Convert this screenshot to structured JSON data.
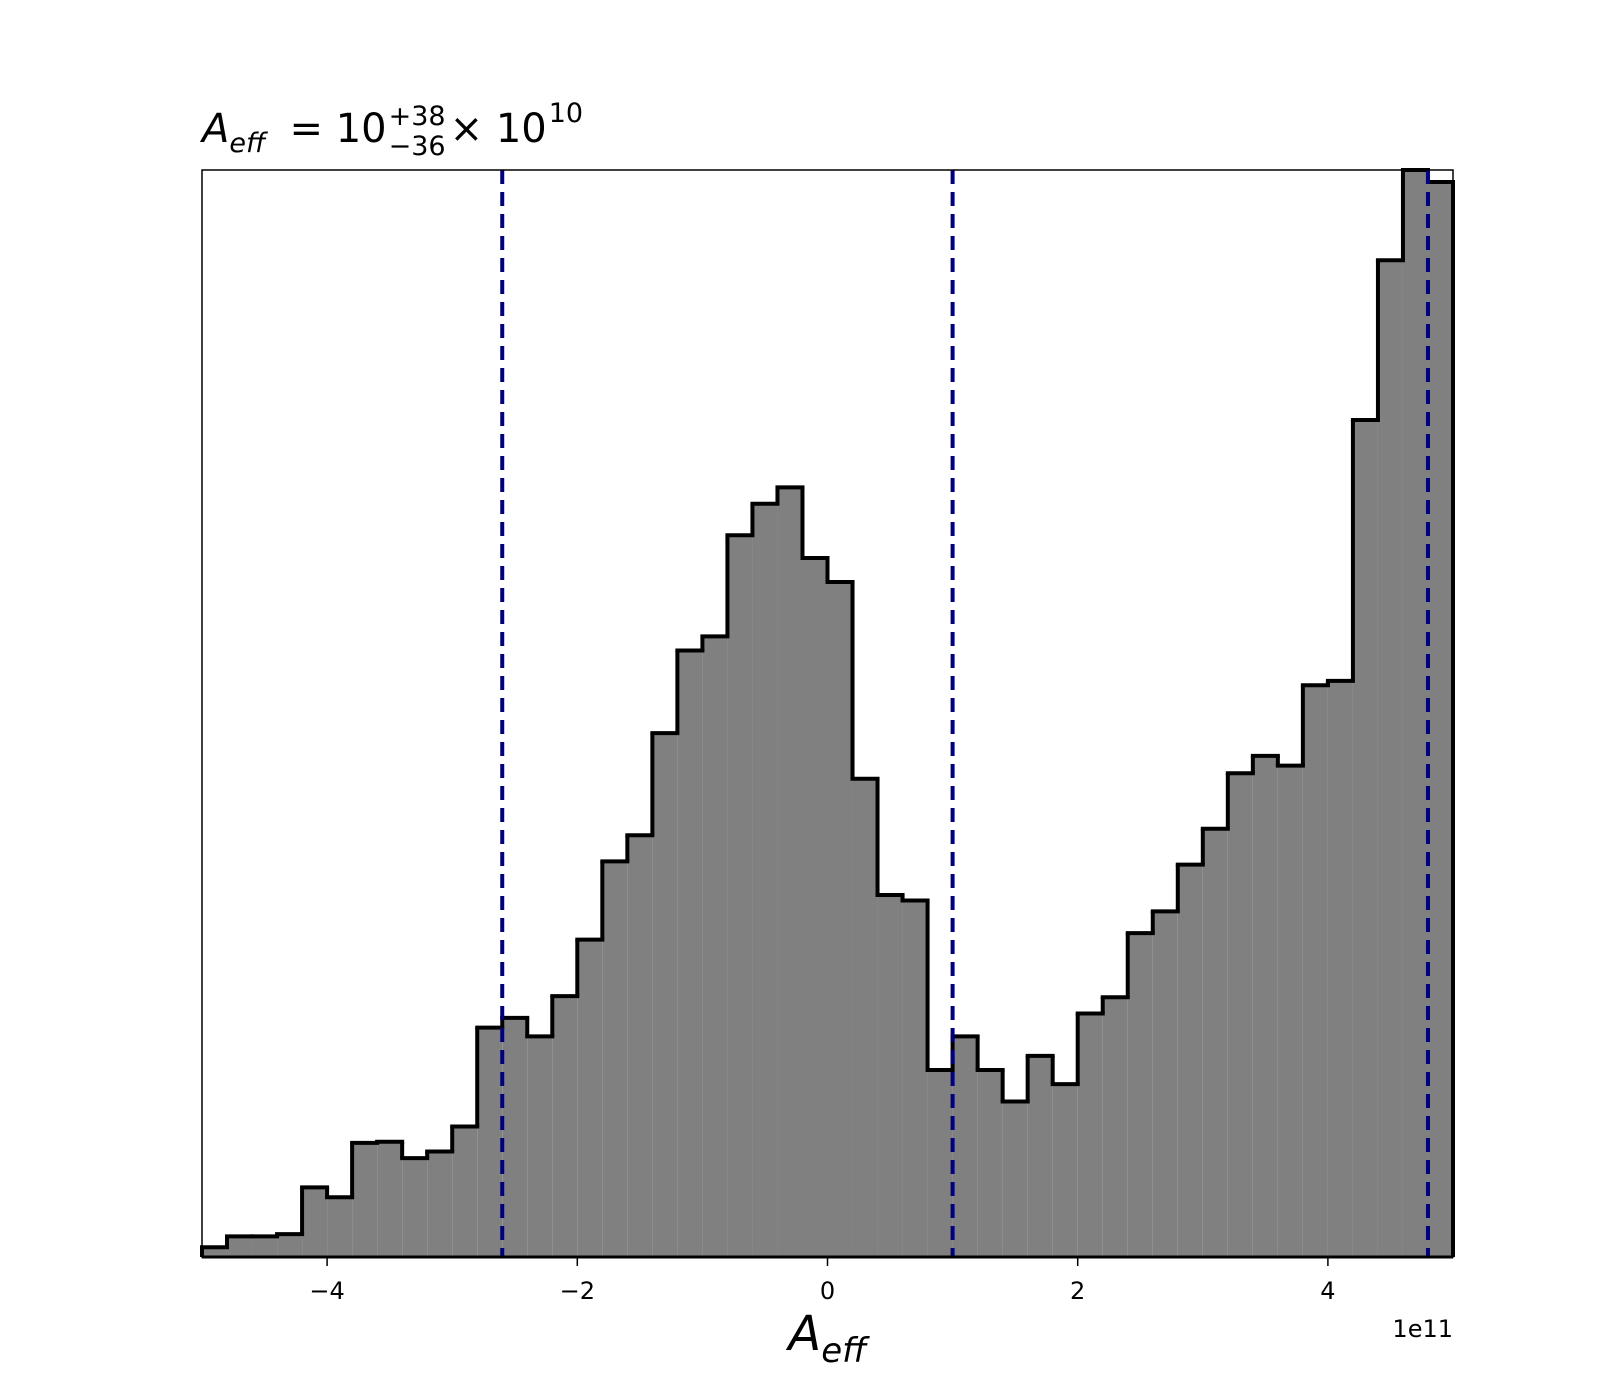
{
  "chart_data": {
    "type": "histogram",
    "title": {
      "symbol": "A",
      "subscript": "eff",
      "text": "= 10",
      "upper": "+38",
      "lower": "−36",
      "times": "× 10",
      "exponent": "10"
    },
    "xlabel": {
      "symbol": "A",
      "subscript": "eff"
    },
    "x_offset_label": "1e11",
    "bins": [
      -5,
      -4.8,
      -4.6,
      -4.4,
      -4.2,
      -4,
      -3.8,
      -3.6,
      -3.4,
      -3.2,
      -3,
      -2.8,
      -2.6,
      -2.4,
      -2.2,
      -2,
      -1.8,
      -1.6,
      -1.4,
      -1.2,
      -1,
      -0.8,
      -0.6,
      -0.4,
      -0.2,
      0,
      0.2,
      0.4,
      0.6,
      0.8,
      1,
      1.2,
      1.4,
      1.6,
      1.8,
      2,
      2.2,
      2.4,
      2.6,
      2.8,
      3,
      3.2,
      3.4,
      3.6,
      3.8,
      4,
      4.2,
      4.4,
      4.6,
      4.8,
      5
    ],
    "values": [
      0.9,
      1.9,
      1.9,
      2.1,
      6.4,
      5.5,
      10.5,
      10.6,
      9.1,
      9.7,
      12.0,
      21.1,
      22.0,
      20.3,
      24.0,
      29.2,
      36.4,
      38.8,
      48.2,
      55.8,
      57.1,
      66.4,
      69.3,
      70.8,
      64.3,
      62.1,
      44.0,
      33.3,
      32.8,
      17.2,
      20.3,
      17.2,
      14.3,
      18.5,
      15.9,
      22.4,
      23.9,
      29.8,
      31.8,
      36.1,
      39.4,
      44.5,
      46.1,
      45.2,
      52.6,
      53.0,
      77.0,
      91.7,
      100,
      98.9
    ],
    "color": "#808080",
    "edge_color": "#000000",
    "vlines": [
      -2.6,
      1.0,
      4.8
    ],
    "vline_color": "#000080",
    "xlim": [
      -5,
      5
    ],
    "ylim": [
      0,
      100
    ],
    "xticks": [
      {
        "value": -4,
        "label": "−4"
      },
      {
        "value": -2,
        "label": "−2"
      },
      0,
      2,
      4
    ]
  }
}
